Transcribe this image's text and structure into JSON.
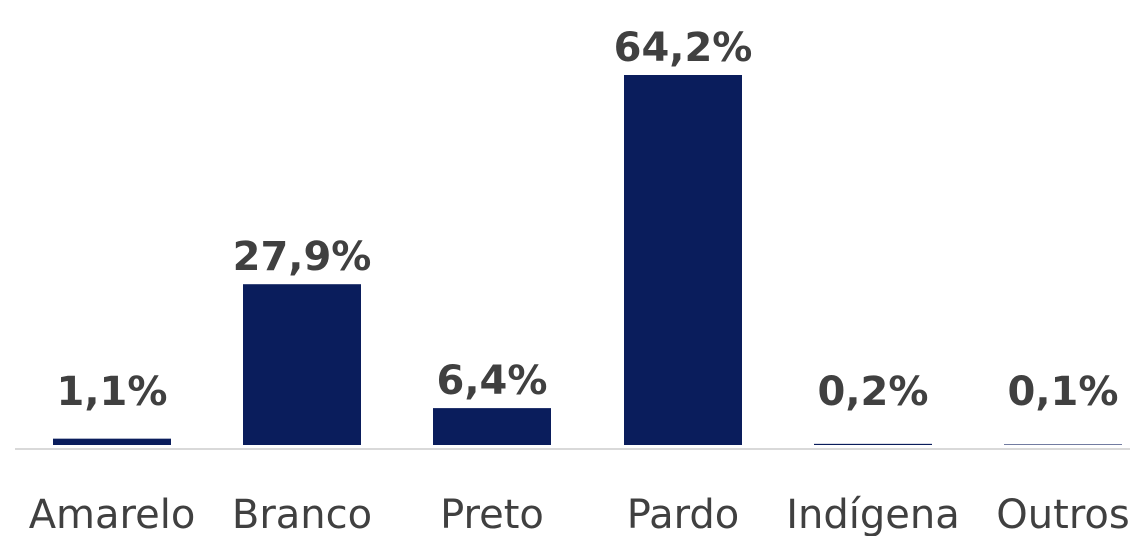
{
  "chart_data": {
    "type": "bar",
    "categories": [
      "Amarelo",
      "Branco",
      "Preto",
      "Pardo",
      "Indígena",
      "Outros"
    ],
    "values": [
      1.1,
      27.9,
      6.4,
      64.2,
      0.2,
      0.1
    ],
    "data_labels": [
      "1,1%",
      "27,9%",
      "6,4%",
      "64,2%",
      "0,2%",
      "0,1%"
    ],
    "ylim": [
      0,
      64.2
    ],
    "grid": false,
    "legend": "none",
    "colors": {
      "bar": "#0a1d5c",
      "text": "#404040",
      "axis": "#d9d9d9"
    }
  }
}
